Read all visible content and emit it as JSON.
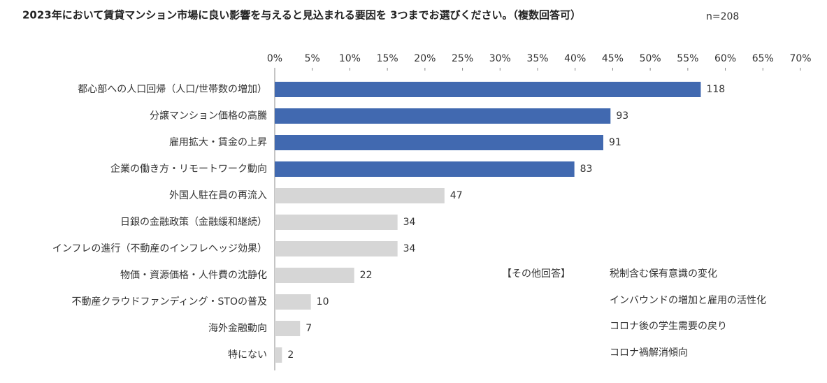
{
  "chart_data": {
    "type": "barh",
    "title": "2023年において賃貸マンション市場に良い影響を与えると見込まれる要因を 3つまでお選びください。（複数回答可）",
    "subtitle": "n=208",
    "categories": [
      "都心部への人口回帰（人口/世帯数の増加）",
      "分譲マンション価格の高騰",
      "雇用拡大・賃金の上昇",
      "企業の働き方・リモートワーク動向",
      "外国人駐在員の再流入",
      "日銀の金融政策（金融緩和継続）",
      "インフレの進行（不動産のインフレヘッジ効果）",
      "物価・資源価格・人件費の沈静化",
      "不動産クラウドファンディング・STOの普及",
      "海外金融動向",
      "特にない"
    ],
    "values": [
      56.73,
      44.71,
      43.75,
      39.9,
      22.6,
      16.35,
      16.35,
      10.58,
      4.81,
      3.37,
      0.96
    ],
    "value_labels": [
      "118",
      "93",
      "91",
      "83",
      "47",
      "34",
      "34",
      "22",
      "10",
      "7",
      "2"
    ],
    "colors": [
      "#4169b0",
      "#4169b0",
      "#4169b0",
      "#4169b0",
      "#d6d6d6",
      "#d6d6d6",
      "#d6d6d6",
      "#d6d6d6",
      "#d6d6d6",
      "#d6d6d6",
      "#d6d6d6"
    ],
    "xlim": [
      0,
      70
    ],
    "xticks": [
      {
        "value": 0,
        "label": "0%"
      },
      {
        "value": 5,
        "label": "5%"
      },
      {
        "value": 10,
        "label": "10%"
      },
      {
        "value": 15,
        "label": "15%"
      },
      {
        "value": 20,
        "label": "20%"
      },
      {
        "value": 25,
        "label": "25%"
      },
      {
        "value": 30,
        "label": "30%"
      },
      {
        "value": 35,
        "label": "35%"
      },
      {
        "value": 40,
        "label": "40%"
      },
      {
        "value": 45,
        "label": "45%"
      },
      {
        "value": 50,
        "label": "50%"
      },
      {
        "value": 55,
        "label": "55%"
      },
      {
        "value": 60,
        "label": "60%"
      },
      {
        "value": 65,
        "label": "65%"
      },
      {
        "value": 70,
        "label": "70%"
      }
    ],
    "grid": false,
    "annotation": {
      "label": "【その他回答】",
      "items": [
        "税制含む保有意識の変化",
        "インバウンドの増加と雇用の活性化",
        "コロナ後の学生需要の戻り",
        "コロナ禍解消傾向"
      ]
    }
  }
}
